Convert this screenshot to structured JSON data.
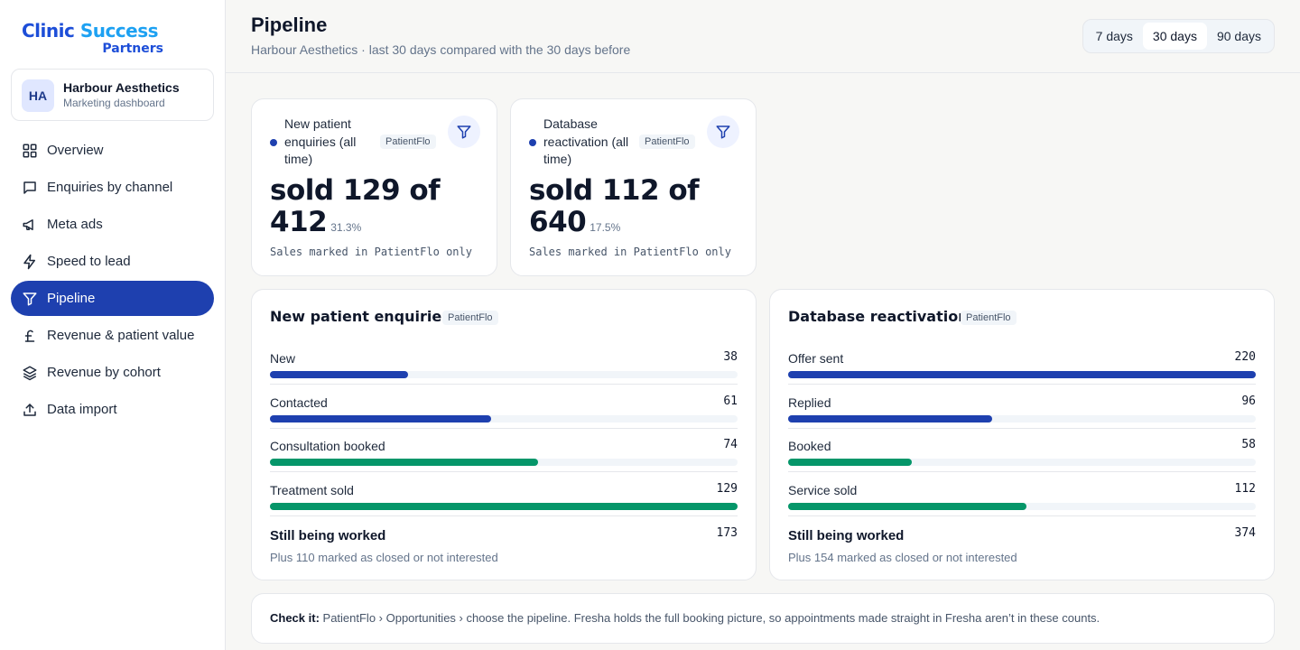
{
  "brand": {
    "line1_a": "Clinic ",
    "line1_b": "Success",
    "line2": "Partners"
  },
  "account": {
    "initials": "HA",
    "name": "Harbour Aesthetics",
    "subtitle": "Marketing dashboard"
  },
  "nav": [
    {
      "label": "Overview",
      "icon": "grid-icon"
    },
    {
      "label": "Enquiries by channel",
      "icon": "message-icon"
    },
    {
      "label": "Meta ads",
      "icon": "megaphone-icon"
    },
    {
      "label": "Speed to lead",
      "icon": "lightning-icon"
    },
    {
      "label": "Pipeline",
      "icon": "filter-icon",
      "active": true
    },
    {
      "label": "Revenue & patient value",
      "icon": "pound-icon"
    },
    {
      "label": "Revenue by cohort",
      "icon": "layers-icon"
    },
    {
      "label": "Data import",
      "icon": "upload-icon"
    }
  ],
  "header": {
    "title": "Pipeline",
    "subtitle": "Harbour Aesthetics · last 30 days compared with the 30 days before",
    "ranges": [
      "7 days",
      "30 days",
      "90 days"
    ],
    "selected_range": "30 days"
  },
  "stats": [
    {
      "label": "New patient enquiries (all time)",
      "source": "PatientFlo",
      "main": "sold 129 of 412",
      "pct": "31.3%",
      "note": "Sales marked in PatientFlo only"
    },
    {
      "label": "Database reactivation (all time)",
      "source": "PatientFlo",
      "main": "sold 112 of 640",
      "pct": "17.5%",
      "note": "Sales marked in PatientFlo only"
    }
  ],
  "funnels": [
    {
      "title": "New patient enquiries",
      "source": "PatientFlo",
      "max": 129,
      "stages": [
        {
          "label": "New",
          "value": 38,
          "color": "#1e40af"
        },
        {
          "label": "Contacted",
          "value": 61,
          "color": "#1e40af"
        },
        {
          "label": "Consultation booked",
          "value": 74,
          "color": "#059669"
        },
        {
          "label": "Treatment sold",
          "value": 129,
          "color": "#059669"
        }
      ],
      "worked": {
        "title": "Still being worked",
        "value": "173",
        "sub": "Plus 110 marked as closed or not interested"
      }
    },
    {
      "title": "Database reactivation",
      "source": "PatientFlo",
      "max": 220,
      "stages": [
        {
          "label": "Offer sent",
          "value": 220,
          "color": "#1e40af"
        },
        {
          "label": "Replied",
          "value": 96,
          "color": "#1e40af"
        },
        {
          "label": "Booked",
          "value": 58,
          "color": "#059669"
        },
        {
          "label": "Service sold",
          "value": 112,
          "color": "#059669"
        }
      ],
      "worked": {
        "title": "Still being worked",
        "value": "374",
        "sub": "Plus 154 marked as closed or not interested"
      }
    }
  ],
  "check": {
    "lead": "Check it:",
    "text": " PatientFlo › Opportunities › choose the pipeline. Fresha holds the full booking picture, so appointments made straight in Fresha aren’t in these counts."
  },
  "colors": {
    "primary": "#1e40af",
    "success": "#059669",
    "track": "#f1f5f9"
  }
}
